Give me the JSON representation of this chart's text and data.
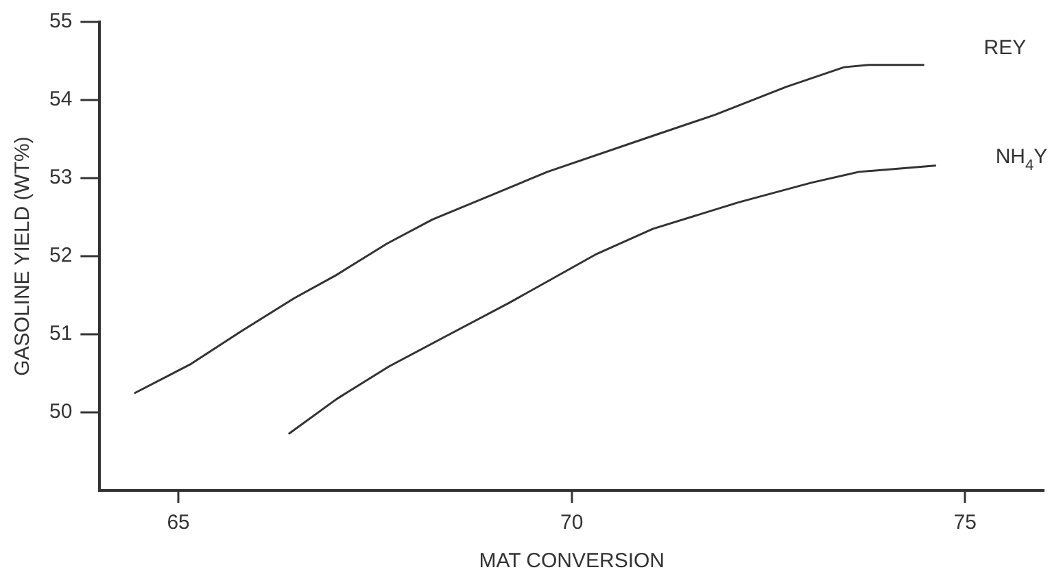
{
  "chart_data": {
    "type": "line",
    "xlabel": "MAT CONVERSION",
    "ylabel": "GASOLINE YIELD (WT%)",
    "xlim": [
      64,
      76
    ],
    "xticks": [
      65,
      70,
      75
    ],
    "ylim": [
      49,
      55
    ],
    "yticks": [
      50,
      51,
      52,
      53,
      54,
      55
    ],
    "grid": false,
    "legend": false,
    "marker": "none",
    "line_style": "solid",
    "series": [
      {
        "name": "REY",
        "color": "#333333",
        "x": [
          64.45,
          65.16,
          65.8,
          66.47,
          67.01,
          67.65,
          68.23,
          69.02,
          69.69,
          70.91,
          71.82,
          72.73,
          73.46,
          73.77,
          74.47
        ],
        "values": [
          50.25,
          50.62,
          51.04,
          51.46,
          51.76,
          52.16,
          52.47,
          52.8,
          53.08,
          53.5,
          53.81,
          54.17,
          54.42,
          54.45,
          54.45
        ]
      },
      {
        "name": "NH$_{4}$Y",
        "color": "#333333",
        "x": [
          66.41,
          67.01,
          67.68,
          68.41,
          69.2,
          70.3,
          71.03,
          72.12,
          73.04,
          73.65,
          74.62
        ],
        "values": [
          49.73,
          50.17,
          50.59,
          50.98,
          51.4,
          52.02,
          52.35,
          52.69,
          52.94,
          53.08,
          53.16
        ]
      }
    ]
  }
}
